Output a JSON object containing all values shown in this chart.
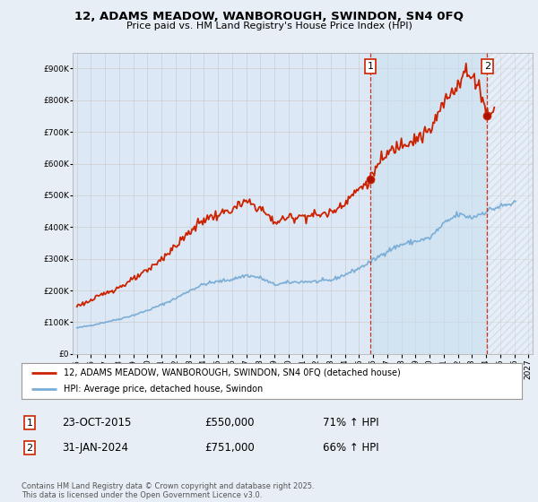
{
  "title": "12, ADAMS MEADOW, WANBOROUGH, SWINDON, SN4 0FQ",
  "subtitle": "Price paid vs. HM Land Registry's House Price Index (HPI)",
  "background_color": "#e8eef5",
  "plot_bg_color": "#dce8f5",
  "shaded_bg_color": "#cce0f0",
  "red_label": "12, ADAMS MEADOW, WANBOROUGH, SWINDON, SN4 0FQ (detached house)",
  "blue_label": "HPI: Average price, detached house, Swindon",
  "footnote": "Contains HM Land Registry data © Crown copyright and database right 2025.\nThis data is licensed under the Open Government Licence v3.0.",
  "marker1_date": "23-OCT-2015",
  "marker1_price": "£550,000",
  "marker1_hpi": "71% ↑ HPI",
  "marker2_date": "31-JAN-2024",
  "marker2_price": "£751,000",
  "marker2_hpi": "66% ↑ HPI",
  "ylim": [
    0,
    950000
  ],
  "xlim_start": 1994.7,
  "xlim_end": 2027.3,
  "red_color": "#cc2200",
  "blue_color": "#7aaed6",
  "grid_color": "#cccccc",
  "vline1_x": 2015.81,
  "vline2_x": 2024.09,
  "marker1_x": 2015.81,
  "marker1_y": 550000,
  "marker2_x": 2024.09,
  "marker2_y": 751000
}
